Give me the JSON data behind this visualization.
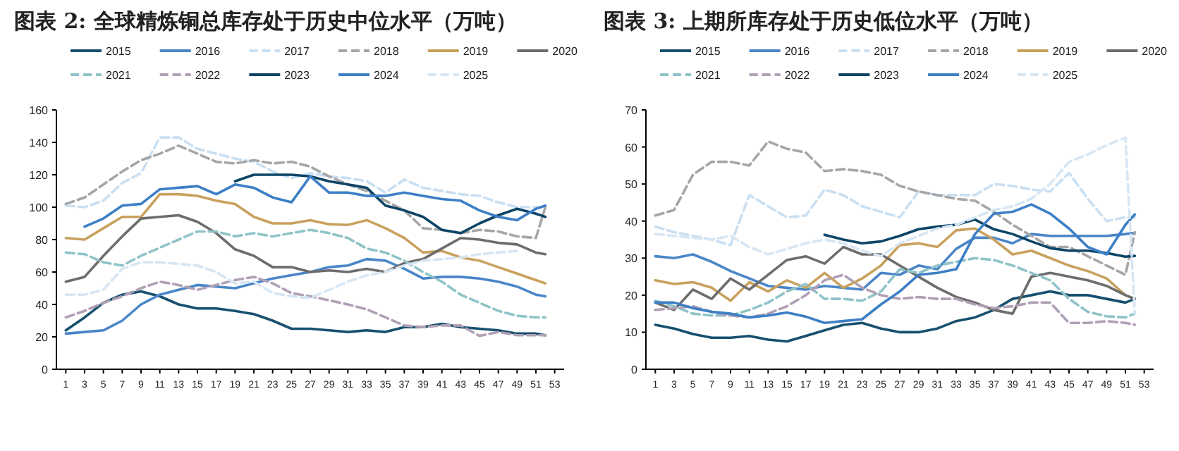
{
  "chart_data": [
    {
      "type": "line",
      "title": "图表 2: 全球精炼铜总库存处于历史中位水平（万吨）",
      "x": [
        1,
        3,
        5,
        7,
        9,
        11,
        13,
        15,
        17,
        19,
        21,
        23,
        25,
        27,
        29,
        31,
        33,
        35,
        37,
        39,
        41,
        43,
        45,
        47,
        49,
        51,
        52
      ],
      "xlim": [
        0,
        54
      ],
      "xticks": [
        1,
        3,
        5,
        7,
        9,
        11,
        13,
        15,
        17,
        19,
        21,
        23,
        25,
        27,
        29,
        31,
        33,
        35,
        37,
        39,
        41,
        43,
        45,
        47,
        49,
        51,
        53
      ],
      "ylim": [
        0,
        160
      ],
      "yticks": [
        0,
        20,
        40,
        60,
        80,
        100,
        120,
        140,
        160
      ],
      "grid": false,
      "legend": "top",
      "marker": "none",
      "series": [
        {
          "name": "2015",
          "color": "#17506e",
          "line_style": "solid",
          "values": [
            24,
            32,
            41,
            46,
            48,
            45,
            40,
            37.5,
            37.5,
            36,
            34,
            30,
            25,
            25,
            24,
            23,
            24,
            23,
            26,
            26,
            28,
            26,
            25,
            24,
            22,
            22,
            21
          ]
        },
        {
          "name": "2016",
          "color": "#4a86c8",
          "line_style": "solid",
          "values": [
            22,
            23,
            24,
            30,
            40,
            46,
            49,
            52,
            51,
            50,
            53,
            56,
            58,
            60,
            63,
            64,
            68,
            67,
            62,
            56,
            57,
            57,
            56,
            54,
            51,
            46,
            45
          ]
        },
        {
          "name": "2017",
          "color": "#c9dff2",
          "line_style": "dashed",
          "values": [
            101,
            100,
            104,
            115,
            121,
            143,
            143,
            136,
            133,
            130,
            128,
            122,
            118,
            121,
            119,
            118,
            116,
            109,
            117,
            112,
            110,
            108,
            107,
            103,
            100,
            100,
            100
          ]
        },
        {
          "name": "2018",
          "color": "#a6a6a6",
          "line_style": "dashed",
          "values": [
            102,
            106,
            114,
            122,
            129,
            133,
            138,
            133,
            128,
            127,
            129,
            127,
            128,
            125,
            119,
            114,
            110,
            104,
            98,
            87,
            86,
            84,
            86,
            85,
            82,
            81,
            100
          ]
        },
        {
          "name": "2019",
          "color": "#c9a15e",
          "line_style": "solid",
          "values": [
            81,
            80,
            87,
            94,
            94,
            108,
            108,
            107,
            104,
            102,
            94,
            90,
            90,
            92,
            89.5,
            89,
            92,
            87,
            81,
            72,
            73,
            69,
            67,
            63,
            59,
            55,
            53
          ]
        },
        {
          "name": "2020",
          "color": "#6d6d6d",
          "line_style": "solid",
          "values": [
            54,
            57,
            70,
            82,
            93,
            94,
            95,
            91,
            84,
            74,
            70,
            63,
            63,
            60,
            61,
            60,
            62,
            60,
            65.5,
            68,
            74.5,
            81,
            80,
            78,
            77,
            72,
            71
          ]
        },
        {
          "name": "2021",
          "color": "#8fc3c8",
          "line_style": "dashed",
          "values": [
            72,
            71,
            66,
            64,
            70,
            75,
            80,
            85,
            85,
            82,
            84,
            82,
            84,
            86,
            84,
            81,
            74.5,
            72,
            67,
            60,
            54,
            46,
            41,
            36,
            33,
            32,
            32
          ]
        },
        {
          "name": "2022",
          "color": "#b0a0b5",
          "line_style": "dashed",
          "values": [
            32,
            36,
            41,
            45,
            50,
            54,
            52,
            49,
            52,
            55,
            57,
            53,
            47,
            45,
            42.5,
            40,
            37,
            32,
            27,
            26,
            27,
            27,
            20.6,
            23,
            21,
            21,
            21
          ]
        },
        {
          "name": "2023",
          "color": "#0d4466",
          "line_style": "solid",
          "values": [
            null,
            null,
            null,
            null,
            null,
            null,
            null,
            null,
            null,
            116,
            120,
            120,
            120,
            119,
            116,
            114,
            112,
            101,
            98,
            94,
            86,
            84,
            90,
            95,
            99,
            96,
            94
          ]
        },
        {
          "name": "2024",
          "color": "#3c7fc6",
          "line_style": "solid",
          "values": [
            null,
            88,
            93,
            101,
            102,
            111,
            112,
            113,
            108,
            114,
            112,
            106,
            103,
            119,
            109,
            109,
            107,
            107,
            109,
            107,
            105,
            104,
            98,
            94,
            92,
            99,
            101
          ]
        },
        {
          "name": "2025",
          "color": "#d6e6f4",
          "line_style": "dashed",
          "values": [
            46,
            46,
            49,
            62,
            66,
            66,
            65,
            64,
            60,
            53,
            54,
            47,
            45,
            44,
            49,
            54,
            58,
            60,
            64,
            67,
            68,
            69,
            71,
            72,
            73,
            null,
            null
          ]
        }
      ]
    },
    {
      "type": "line",
      "title": "图表 3: 上期所库存处于历史低位水平（万吨）",
      "x": [
        1,
        3,
        5,
        7,
        9,
        11,
        13,
        15,
        17,
        19,
        21,
        23,
        25,
        27,
        29,
        31,
        33,
        35,
        37,
        39,
        41,
        43,
        45,
        47,
        49,
        51,
        52
      ],
      "xlim": [
        0,
        54
      ],
      "xticks": [
        1,
        3,
        5,
        7,
        9,
        11,
        13,
        15,
        17,
        19,
        21,
        23,
        25,
        27,
        29,
        31,
        33,
        35,
        37,
        39,
        41,
        43,
        45,
        47,
        49,
        51,
        53
      ],
      "ylim": [
        0,
        70
      ],
      "yticks": [
        0,
        10,
        20,
        30,
        40,
        50,
        60,
        70
      ],
      "grid": false,
      "legend": "top",
      "marker": "none",
      "series": [
        {
          "name": "2015",
          "color": "#17506e",
          "line_style": "solid",
          "values": [
            12,
            11,
            9.5,
            8.5,
            8.5,
            9,
            8,
            7.5,
            9,
            10.5,
            12,
            12.5,
            11,
            10,
            10,
            11,
            13,
            14,
            16,
            19,
            20,
            21,
            20,
            20,
            19,
            18,
            19
          ]
        },
        {
          "name": "2016",
          "color": "#4a86c8",
          "line_style": "solid",
          "values": [
            30.5,
            30,
            31,
            29,
            26.5,
            24.5,
            22.5,
            22,
            21.5,
            22.5,
            22,
            21.5,
            26,
            25.5,
            28,
            27,
            32.5,
            35.5,
            35.5,
            34,
            36.5,
            36,
            36,
            36,
            36,
            36.5,
            36.8
          ]
        },
        {
          "name": "2017",
          "color": "#c9dff2",
          "line_style": "dashed",
          "values": [
            38.5,
            37,
            36,
            35,
            33.5,
            47,
            44,
            41,
            41.5,
            48.5,
            47,
            44,
            42.5,
            41,
            48,
            47,
            47,
            47,
            50,
            49.5,
            48.5,
            48,
            53,
            46,
            40,
            41,
            41
          ]
        },
        {
          "name": "2018",
          "color": "#a6a6a6",
          "line_style": "dashed",
          "values": [
            41.5,
            43,
            52.5,
            56,
            56,
            55,
            61.5,
            59.5,
            58.5,
            53.5,
            54,
            53.5,
            52.5,
            49.5,
            48,
            47,
            46,
            45.5,
            42.5,
            39,
            36,
            33,
            33,
            30.5,
            28,
            25.5,
            37
          ]
        },
        {
          "name": "2019",
          "color": "#c9a15e",
          "line_style": "solid",
          "values": [
            24,
            23,
            23.5,
            22,
            18.5,
            23.5,
            21,
            24,
            22,
            26,
            22,
            24.5,
            28,
            33.5,
            34,
            33,
            37.5,
            38,
            35,
            31,
            32,
            30,
            28,
            26.5,
            24.5,
            20,
            19
          ]
        },
        {
          "name": "2020",
          "color": "#6d6d6d",
          "line_style": "solid",
          "values": [
            18,
            16,
            21.5,
            19,
            24.5,
            21.5,
            25.5,
            29.5,
            30.5,
            28.5,
            33,
            31,
            31,
            28,
            25,
            22,
            19.5,
            18,
            16,
            15,
            25,
            26,
            25,
            24,
            22.5,
            20,
            19
          ]
        },
        {
          "name": "2021",
          "color": "#8fc3c8",
          "line_style": "dashed",
          "values": [
            18.5,
            17,
            15,
            14.5,
            14.5,
            16,
            18,
            21,
            23,
            19,
            19,
            18.5,
            21,
            27,
            26,
            28,
            29,
            30,
            29.5,
            28,
            26,
            24,
            19,
            15.5,
            14.3,
            14,
            15
          ]
        },
        {
          "name": "2022",
          "color": "#b0a0b5",
          "line_style": "dashed",
          "values": [
            16,
            16.5,
            17,
            15.5,
            14.5,
            14,
            15,
            17,
            20,
            24,
            25.5,
            22,
            20,
            19,
            19.5,
            19,
            19,
            17.5,
            16.5,
            17,
            18,
            18,
            12.5,
            12.5,
            13,
            12.5,
            12
          ]
        },
        {
          "name": "2023",
          "color": "#0d4466",
          "line_style": "solid",
          "values": [
            null,
            null,
            null,
            null,
            null,
            null,
            null,
            null,
            null,
            36.3,
            35,
            34,
            34.5,
            36,
            37.8,
            38.5,
            39,
            40.4,
            37.8,
            36.5,
            34.5,
            32.7,
            32,
            32,
            31.4,
            30.4,
            30.6
          ]
        },
        {
          "name": "2024",
          "color": "#3c7fc6",
          "line_style": "solid",
          "values": [
            18,
            18,
            16.5,
            15.5,
            15,
            14,
            14.5,
            15.3,
            14.2,
            12.5,
            13,
            13.5,
            17.5,
            21,
            25.5,
            26,
            27,
            36.5,
            42,
            42.5,
            44.5,
            42,
            38,
            33,
            31,
            39,
            41.8
          ]
        },
        {
          "name": "2025",
          "color": "#d6e6f4",
          "line_style": "dashed",
          "values": [
            36.5,
            36,
            35.5,
            35,
            36,
            33,
            31,
            32.5,
            34,
            35,
            34,
            32,
            30.5,
            34,
            36,
            38,
            39,
            41,
            43,
            44,
            46,
            50,
            56,
            58,
            60.5,
            62.5,
            15
          ]
        }
      ]
    }
  ]
}
